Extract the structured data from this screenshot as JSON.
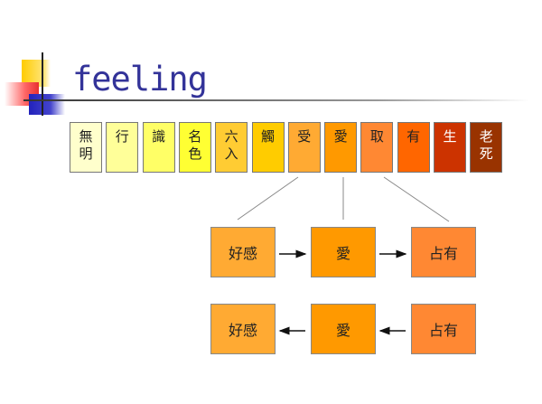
{
  "slide": {
    "title": "feeling",
    "chain": [
      {
        "label": "無明",
        "color": "#ffffcc"
      },
      {
        "label": "行",
        "color": "#ffff99"
      },
      {
        "label": "識",
        "color": "#ffff66"
      },
      {
        "label": "名色",
        "color": "#ffff33"
      },
      {
        "label": "六入",
        "color": "#ffcc33"
      },
      {
        "label": "觸",
        "color": "#ffcc00"
      },
      {
        "label": "受",
        "color": "#ffaa33"
      },
      {
        "label": "愛",
        "color": "#ff9900"
      },
      {
        "label": "取",
        "color": "#ff8833"
      },
      {
        "label": "有",
        "color": "#ff6600"
      },
      {
        "label": "生",
        "color": "#cc3300"
      },
      {
        "label": "老死",
        "color": "#993300"
      }
    ],
    "forward_row": [
      {
        "label": "好感",
        "color": "#ffaa33"
      },
      {
        "label": "愛",
        "color": "#ff9900"
      },
      {
        "label": "占有",
        "color": "#ff8833"
      }
    ],
    "backward_row": [
      {
        "label": "好感",
        "color": "#ffaa33"
      },
      {
        "label": "愛",
        "color": "#ff9900"
      },
      {
        "label": "占有",
        "color": "#ff8833"
      }
    ]
  }
}
